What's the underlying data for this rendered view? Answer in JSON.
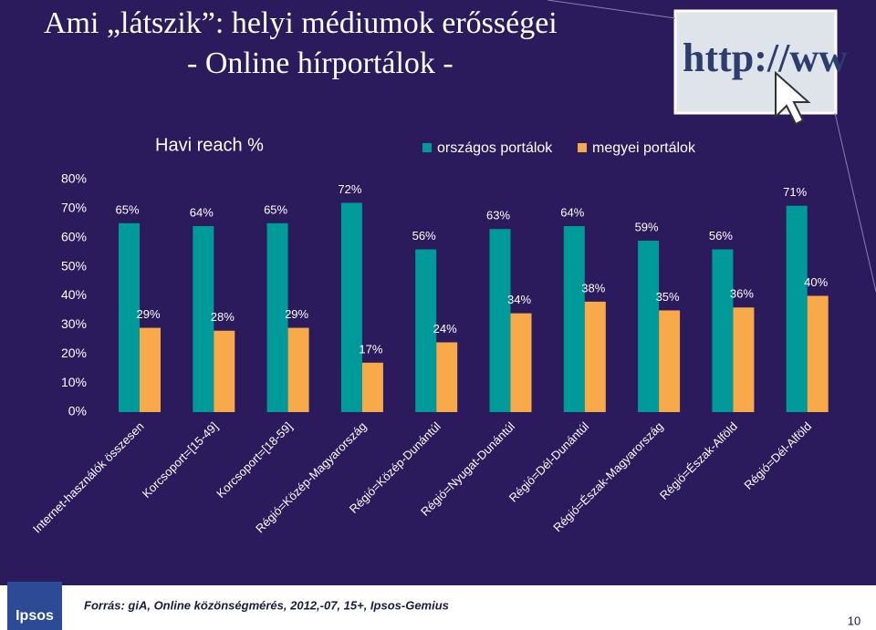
{
  "header": {
    "title": [
      "Ami „látszik”: helyi médiumok erősségei",
      "- Online hírportálok -"
    ]
  },
  "chart_data": {
    "type": "bar",
    "title": "Havi reach %",
    "categories": [
      "Internet-használók összesen",
      "Korcsoport=[15-49]",
      "Korcsoport=[18-59]",
      "Régió=Közép-Magyarország",
      "Régió=Közép-Dunántúl",
      "Régió=Nyugat-Dunántúl",
      "Régió=Dél-Dunántúl",
      "Régió=Észak-Magyarország",
      "Régió=Észak-Alföld",
      "Régió=Dél-Alföld"
    ],
    "series": [
      {
        "name": "országos portálok",
        "color": "#009a9a",
        "values": [
          65,
          64,
          65,
          72,
          56,
          63,
          64,
          59,
          56,
          71
        ],
        "value_labels": [
          "65%",
          "64%",
          "65%",
          "72%",
          "56%",
          "63%",
          "64%",
          "59%",
          "56%",
          "71%"
        ]
      },
      {
        "name": "megyei portálok",
        "color": "#f8a94a",
        "values": [
          29,
          28,
          29,
          17,
          24,
          34,
          38,
          35,
          36,
          40
        ],
        "value_labels": [
          "29%",
          "28%",
          "29%",
          "17%",
          "24%",
          "34%",
          "38%",
          "35%",
          "36%",
          "40%"
        ]
      }
    ],
    "ylim": [
      0,
      80
    ],
    "yticks": [
      {
        "value": 0,
        "label": "0%"
      },
      {
        "value": 10,
        "label": "10%"
      },
      {
        "value": 20,
        "label": "20%"
      },
      {
        "value": 30,
        "label": "30%"
      },
      {
        "value": 40,
        "label": "40%"
      },
      {
        "value": 50,
        "label": "50%"
      },
      {
        "value": 60,
        "label": "60%"
      },
      {
        "value": 70,
        "label": "70%"
      },
      {
        "value": 80,
        "label": "80%"
      }
    ],
    "grid": false,
    "legend": "top"
  },
  "footer": {
    "source": "Forrás: giA, Online közönségmérés, 2012,-07, 15+, Ipsos-Gemius",
    "logo": "Ipsos",
    "page_number": "10"
  }
}
